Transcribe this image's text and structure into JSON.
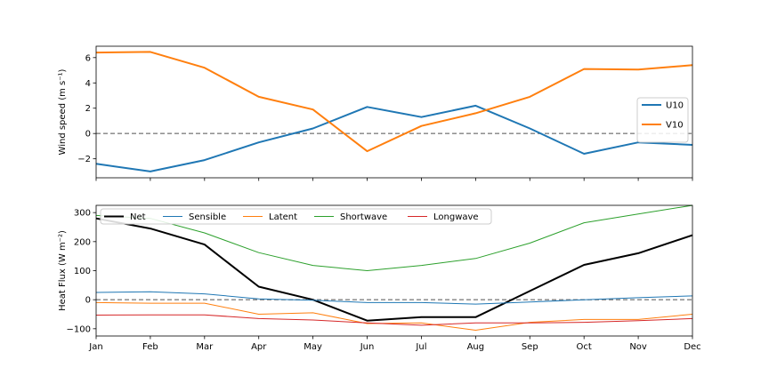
{
  "chart_data": [
    {
      "type": "line",
      "ylabel": "Wind speed (m s⁻¹)",
      "x": [
        "Jan",
        "Feb",
        "Mar",
        "Apr",
        "May",
        "Jun",
        "Jul",
        "Aug",
        "Sep",
        "Oct",
        "Nov",
        "Dec"
      ],
      "xticks_visible": false,
      "ylim": [
        -3.5,
        6.9
      ],
      "yticks": [
        -2,
        0,
        2,
        4,
        6
      ],
      "ytick_labels": [
        "−2",
        "0",
        "2",
        "4",
        "6"
      ],
      "zero_line": "dashed grey",
      "grid": false,
      "legend": "center-right",
      "series": [
        {
          "name": "U10",
          "color": "#1f77b4",
          "values": [
            -2.4,
            -3.0,
            -2.1,
            -0.7,
            0.4,
            2.1,
            1.3,
            2.2,
            0.4,
            -1.6,
            -0.7,
            -0.9
          ]
        },
        {
          "name": "V10",
          "color": "#ff7f0e",
          "values": [
            6.4,
            6.45,
            5.2,
            2.9,
            1.9,
            -1.4,
            0.6,
            1.6,
            2.9,
            5.1,
            5.05,
            5.4
          ]
        }
      ]
    },
    {
      "type": "line",
      "ylabel": "Heat Flux (W m⁻²)",
      "x": [
        "Jan",
        "Feb",
        "Mar",
        "Apr",
        "May",
        "Jun",
        "Jul",
        "Aug",
        "Sep",
        "Oct",
        "Nov",
        "Dec"
      ],
      "ylim": [
        -125,
        325
      ],
      "yticks": [
        -100,
        0,
        100,
        200,
        300
      ],
      "ytick_labels": [
        "−100",
        "0",
        "100",
        "200",
        "300"
      ],
      "zero_line": "dashed grey",
      "grid": false,
      "legend": "top",
      "series": [
        {
          "name": "Net",
          "color": "#000000",
          "values": [
            280,
            245,
            190,
            45,
            0,
            -72,
            -60,
            -60,
            30,
            120,
            160,
            222
          ]
        },
        {
          "name": "Sensible",
          "color": "#1f77b4",
          "values": [
            25,
            27,
            20,
            3,
            -2,
            -10,
            -10,
            -15,
            -8,
            0,
            7,
            13
          ]
        },
        {
          "name": "Latent",
          "color": "#ff7f0e",
          "values": [
            -10,
            -12,
            -12,
            -50,
            -45,
            -82,
            -80,
            -105,
            -78,
            -68,
            -68,
            -50
          ]
        },
        {
          "name": "Shortwave",
          "color": "#2ca02c",
          "values": [
            290,
            280,
            230,
            162,
            118,
            100,
            118,
            142,
            195,
            265,
            295,
            325
          ]
        },
        {
          "name": "Longwave",
          "color": "#d62728",
          "values": [
            -53,
            -52,
            -52,
            -65,
            -70,
            -80,
            -88,
            -80,
            -80,
            -78,
            -72,
            -65
          ]
        }
      ]
    }
  ]
}
